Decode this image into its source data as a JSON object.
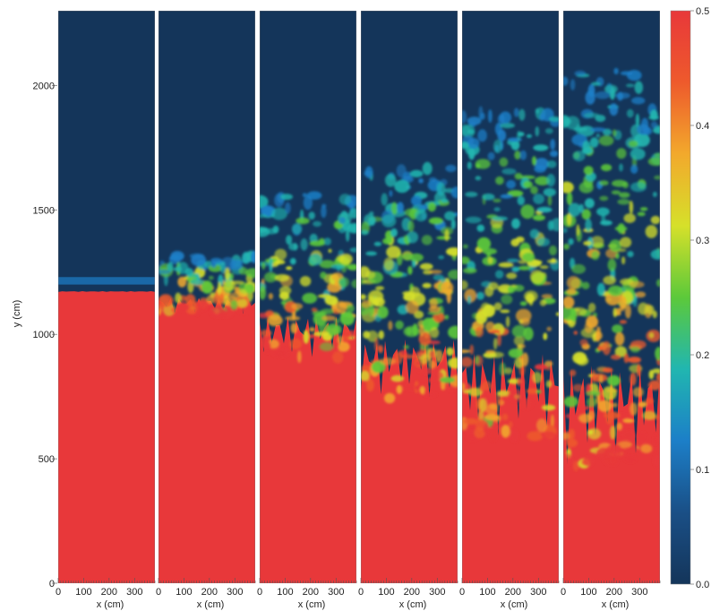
{
  "chart_data": {
    "type": "heatmap",
    "title": "",
    "xlabel": "x (cm)",
    "ylabel": "y (cm)",
    "x_range": [
      0,
      380
    ],
    "y_range": [
      0,
      2300
    ],
    "x_ticks": [
      0,
      100,
      200,
      300
    ],
    "y_ticks": [
      0,
      500,
      1000,
      1500,
      2000
    ],
    "colorbar": {
      "range": [
        0.0,
        0.5
      ],
      "ticks": [
        "0.0",
        "0.1",
        "0.2",
        "0.3",
        "0.4",
        "0.5"
      ],
      "colors": [
        "#14355a",
        "#1a4f86",
        "#1c7fc8",
        "#21b6b0",
        "#5cc93a",
        "#d6e02a",
        "#f2a92c",
        "#ee5a2c",
        "#e8383a"
      ]
    },
    "panels": [
      {
        "panel": 1,
        "interface_top_y": 1230,
        "interface_bottom_y": 1170,
        "mixing_zone": false
      },
      {
        "panel": 2,
        "interface_top_y": 1320,
        "interface_bottom_y": 1080,
        "mixing_zone": true
      },
      {
        "panel": 3,
        "interface_top_y": 1560,
        "interface_bottom_y": 900,
        "mixing_zone": true
      },
      {
        "panel": 4,
        "interface_top_y": 1670,
        "interface_bottom_y": 740,
        "mixing_zone": true
      },
      {
        "panel": 5,
        "interface_top_y": 1900,
        "interface_bottom_y": 590,
        "mixing_zone": true
      },
      {
        "panel": 6,
        "interface_top_y": 2060,
        "interface_bottom_y": 470,
        "mixing_zone": true
      }
    ],
    "colors": {
      "upper_fluid": "#14355a",
      "lower_fluid": "#e8383a"
    },
    "grid": false,
    "legend": "colorbar-right"
  }
}
